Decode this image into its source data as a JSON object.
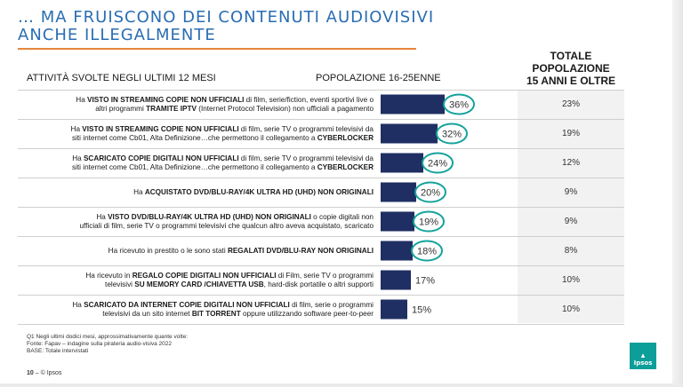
{
  "slide": {
    "title_lines": [
      "… MA FRUISCONO DEI CONTENUTI AUDIOVISIVI",
      "ANCHE ILLEGALMENTE"
    ],
    "header_activity": "ATTIVITÀ SVOLTE NEGLI ULTIMI 12 MESI",
    "header_population": "POPOLAZIONE 16-25ENNE",
    "header_total_lines": [
      "TOTALE",
      "POPOLAZIONE",
      "15 ANNI E OLTRE"
    ],
    "footnote_lines": [
      "Q1 Negli ultimi dodici mesi, approssimativamente quante volte:",
      "Fonte: Fapav – indagine sulla pirateria audio-visiva 2022",
      "BASE: Totale intervistati"
    ],
    "page_number": "10",
    "copyright": "– © Ipsos",
    "logo_text": "Ipsos",
    "colors": {
      "title": "#2a6db2",
      "accent_line": "#e6863b",
      "bar": "#1f2f63",
      "circle": "#14a39b",
      "logo": "#0d9e9a"
    }
  },
  "rows": [
    {
      "lines": [
        [
          {
            "t": "Ha ",
            "b": false
          },
          {
            "t": "VISTO IN STREAMING COPIE NON UFFICIALI",
            "b": true
          },
          {
            "t": " di film, serie/fiction, eventi sportivi live o",
            "b": false
          }
        ],
        [
          {
            "t": "altri programmi ",
            "b": false
          },
          {
            "t": "TRAMITE IPTV",
            "b": true
          },
          {
            "t": " (Internet Protocol Television) non ufficiali a pagamento",
            "b": false
          }
        ]
      ],
      "total": "23%"
    },
    {
      "lines": [
        [
          {
            "t": "Ha ",
            "b": false
          },
          {
            "t": "VISTO IN STREAMING COPIE NON UFFICIALI",
            "b": true
          },
          {
            "t": " di film, serie TV o programmi televisivi da",
            "b": false
          }
        ],
        [
          {
            "t": "siti internet come Cb01, Alta Definizione…che permettono il collegamento a ",
            "b": false
          },
          {
            "t": "CYBERLOCKER",
            "b": true
          }
        ]
      ],
      "total": "19%"
    },
    {
      "lines": [
        [
          {
            "t": "Ha ",
            "b": false
          },
          {
            "t": "SCARICATO COPIE DIGITALI NON UFFICIALI",
            "b": true
          },
          {
            "t": " di film, serie TV o programmi televisivi da",
            "b": false
          }
        ],
        [
          {
            "t": "siti internet come Cb01, Alta Definizione…che permettono il collegamento a ",
            "b": false
          },
          {
            "t": "CYBERLOCKER",
            "b": true
          }
        ]
      ],
      "total": "12%"
    },
    {
      "lines": [
        [
          {
            "t": "Ha ",
            "b": false
          },
          {
            "t": "ACQUISTATO DVD/BLU-RAY/4K ULTRA HD (UHD) NON ORIGINALI",
            "b": true
          }
        ]
      ],
      "total": "9%"
    },
    {
      "lines": [
        [
          {
            "t": "Ha ",
            "b": false
          },
          {
            "t": "VISTO DVD/BLU-RAY/4K ULTRA HD (UHD) NON ORIGINALI",
            "b": true
          },
          {
            "t": " o copie digitali non",
            "b": false
          }
        ],
        [
          {
            "t": "ufficiali di film, serie TV o programmi televisivi che qualcun altro aveva acquistato, scaricato",
            "b": false
          }
        ]
      ],
      "total": "9%"
    },
    {
      "lines": [
        [
          {
            "t": "Ha ricevuto in prestito o le sono stati ",
            "b": false
          },
          {
            "t": "REGALATI DVD/BLU-RAY NON ORIGINALI",
            "b": true
          }
        ]
      ],
      "total": "8%"
    },
    {
      "lines": [
        [
          {
            "t": "Ha ricevuto in ",
            "b": false
          },
          {
            "t": "REGALO COPIE DIGITALI NON UFFICIALI",
            "b": true
          },
          {
            "t": " di Film, serie TV o programmi",
            "b": false
          }
        ],
        [
          {
            "t": "televisivi ",
            "b": false
          },
          {
            "t": "SU MEMORY CARD /CHIAVETTA USB",
            "b": true
          },
          {
            "t": ", hard-disk portatile o altri supporti",
            "b": false
          }
        ]
      ],
      "total": "10%"
    },
    {
      "lines": [
        [
          {
            "t": "Ha ",
            "b": false
          },
          {
            "t": "SCARICATO DA INTERNET COPIE DIGITALI NON UFFICIALI",
            "b": true
          },
          {
            "t": " di film, serie o programmi",
            "b": false
          }
        ],
        [
          {
            "t": "televisivi da un sito internet ",
            "b": false
          },
          {
            "t": "BIT TORRENT",
            "b": true
          },
          {
            "t": " oppure utilizzando software peer-to-peer",
            "b": false
          }
        ]
      ],
      "total": "10%"
    }
  ],
  "chart_data": {
    "type": "bar",
    "orientation": "horizontal",
    "xlim": [
      0,
      36
    ],
    "series": [
      {
        "values": [
          36,
          32,
          24,
          20,
          19,
          18,
          17,
          15
        ]
      }
    ],
    "value_labels": [
      "36%",
      "32%",
      "24%",
      "20%",
      "19%",
      "18%",
      "17%",
      "15%"
    ],
    "highlighted": [
      true,
      true,
      true,
      true,
      true,
      true,
      false,
      false
    ]
  }
}
